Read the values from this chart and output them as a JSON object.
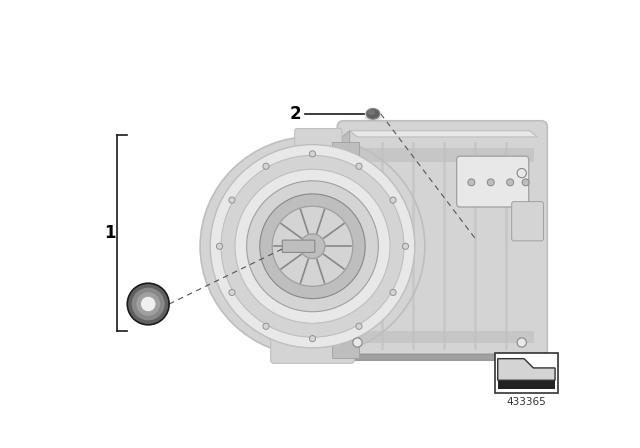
{
  "background_color": "#ffffff",
  "fig_width": 6.4,
  "fig_height": 4.48,
  "dpi": 100,
  "label1": "1",
  "label2": "2",
  "part_number": "433365",
  "bracket_color": "#1a1a1a",
  "line_color": "#1a1a1a",
  "dashed_color": "#555555",
  "tc_lightest": "#e8e8e8",
  "tc_light": "#d4d4d4",
  "tc_mid": "#bebebe",
  "tc_dark": "#a0a0a0",
  "tc_darker": "#888888",
  "tc_darkest": "#606060"
}
